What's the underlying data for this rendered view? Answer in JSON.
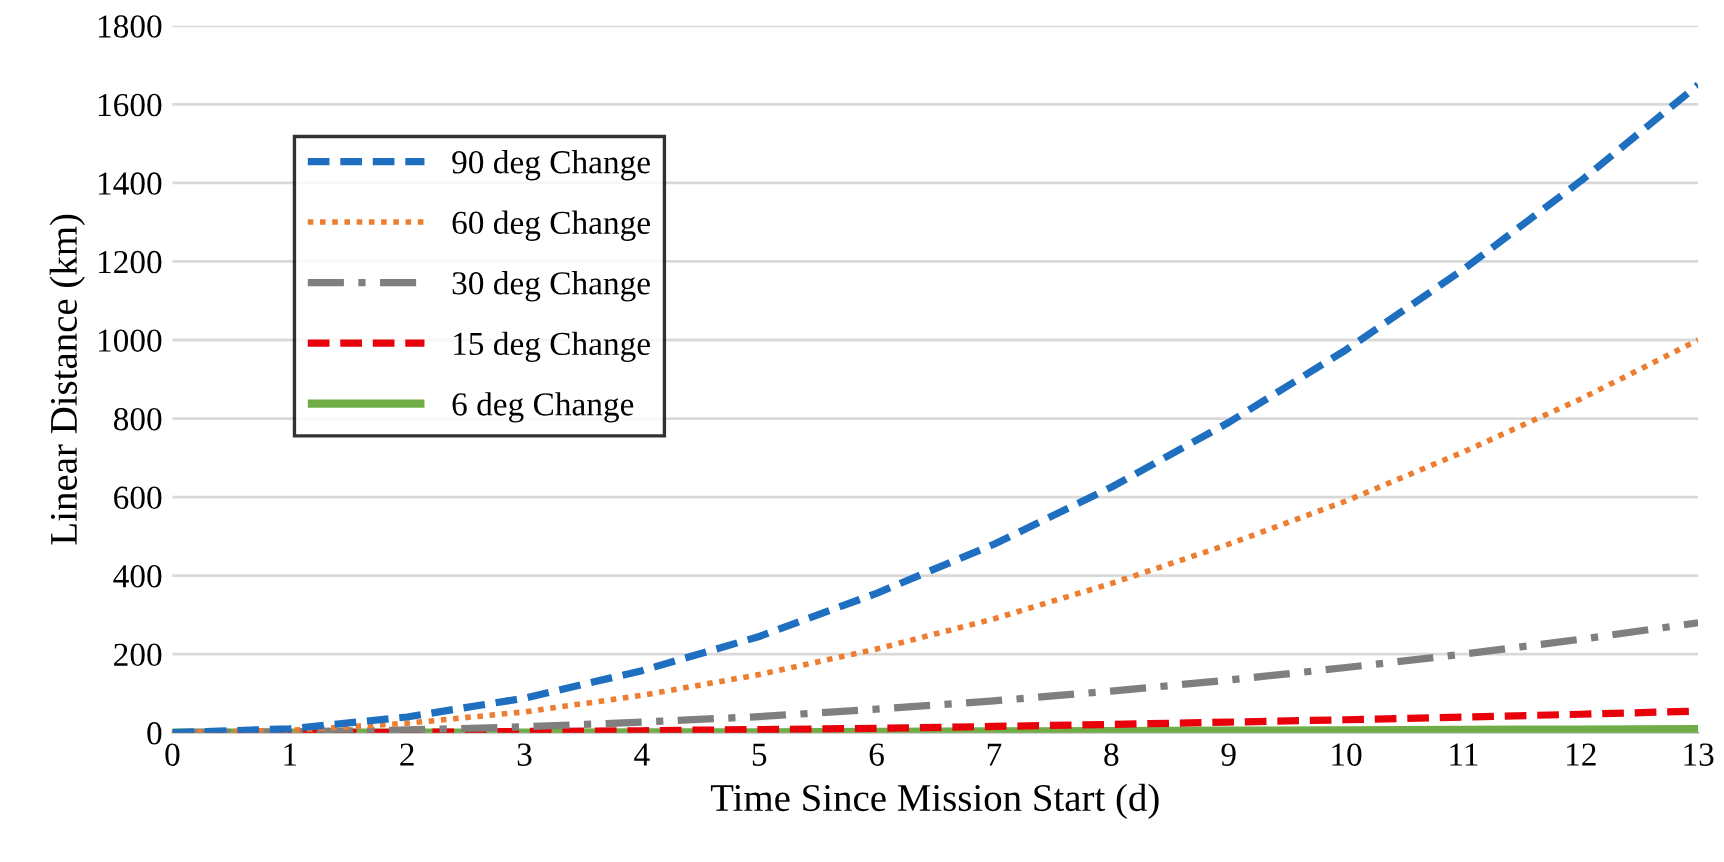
{
  "chart_data": {
    "type": "line",
    "xlabel": "Time Since Mission Start (d)",
    "ylabel": "Linear Distance (km)",
    "x": [
      0,
      1,
      2,
      3,
      4,
      5,
      6,
      7,
      8,
      9,
      10,
      11,
      12,
      13
    ],
    "xlim": [
      0,
      13
    ],
    "xticks": [
      0,
      1,
      2,
      3,
      4,
      5,
      6,
      7,
      8,
      9,
      10,
      11,
      12,
      13
    ],
    "ylim": [
      0,
      1800
    ],
    "yticks": [
      0,
      200,
      400,
      600,
      800,
      1000,
      1200,
      1400,
      1600,
      1800
    ],
    "grid": "y",
    "legend": "top left",
    "marker": "none",
    "series": [
      {
        "name": "90 deg Change",
        "color": "#1f6fc0",
        "line_style": "dashed",
        "values": [
          0,
          10,
          40,
          88,
          158,
          245,
          355,
          480,
          625,
          790,
          975,
          1180,
          1405,
          1650
        ]
      },
      {
        "name": "60 deg Change",
        "color": "#ed7d31",
        "line_style": "dotted",
        "values": [
          0,
          6,
          24,
          53,
          95,
          148,
          213,
          290,
          380,
          480,
          590,
          715,
          850,
          1000
        ]
      },
      {
        "name": "30 deg Change",
        "color": "#7f7f7f",
        "line_style": "dashdot",
        "values": [
          0,
          2,
          7,
          15,
          27,
          41,
          60,
          81,
          106,
          134,
          166,
          200,
          238,
          280
        ]
      },
      {
        "name": "15 deg Change",
        "color": "#e8000b",
        "line_style": "dashed",
        "values": [
          0,
          0,
          1,
          3,
          5,
          8,
          11,
          16,
          21,
          27,
          33,
          40,
          47,
          55
        ]
      },
      {
        "name": "6 deg Change",
        "color": "#70ad47",
        "line_style": "solid",
        "values": [
          0,
          0,
          0,
          0,
          1,
          1,
          2,
          3,
          4,
          5,
          6,
          7,
          8,
          9
        ]
      }
    ]
  }
}
